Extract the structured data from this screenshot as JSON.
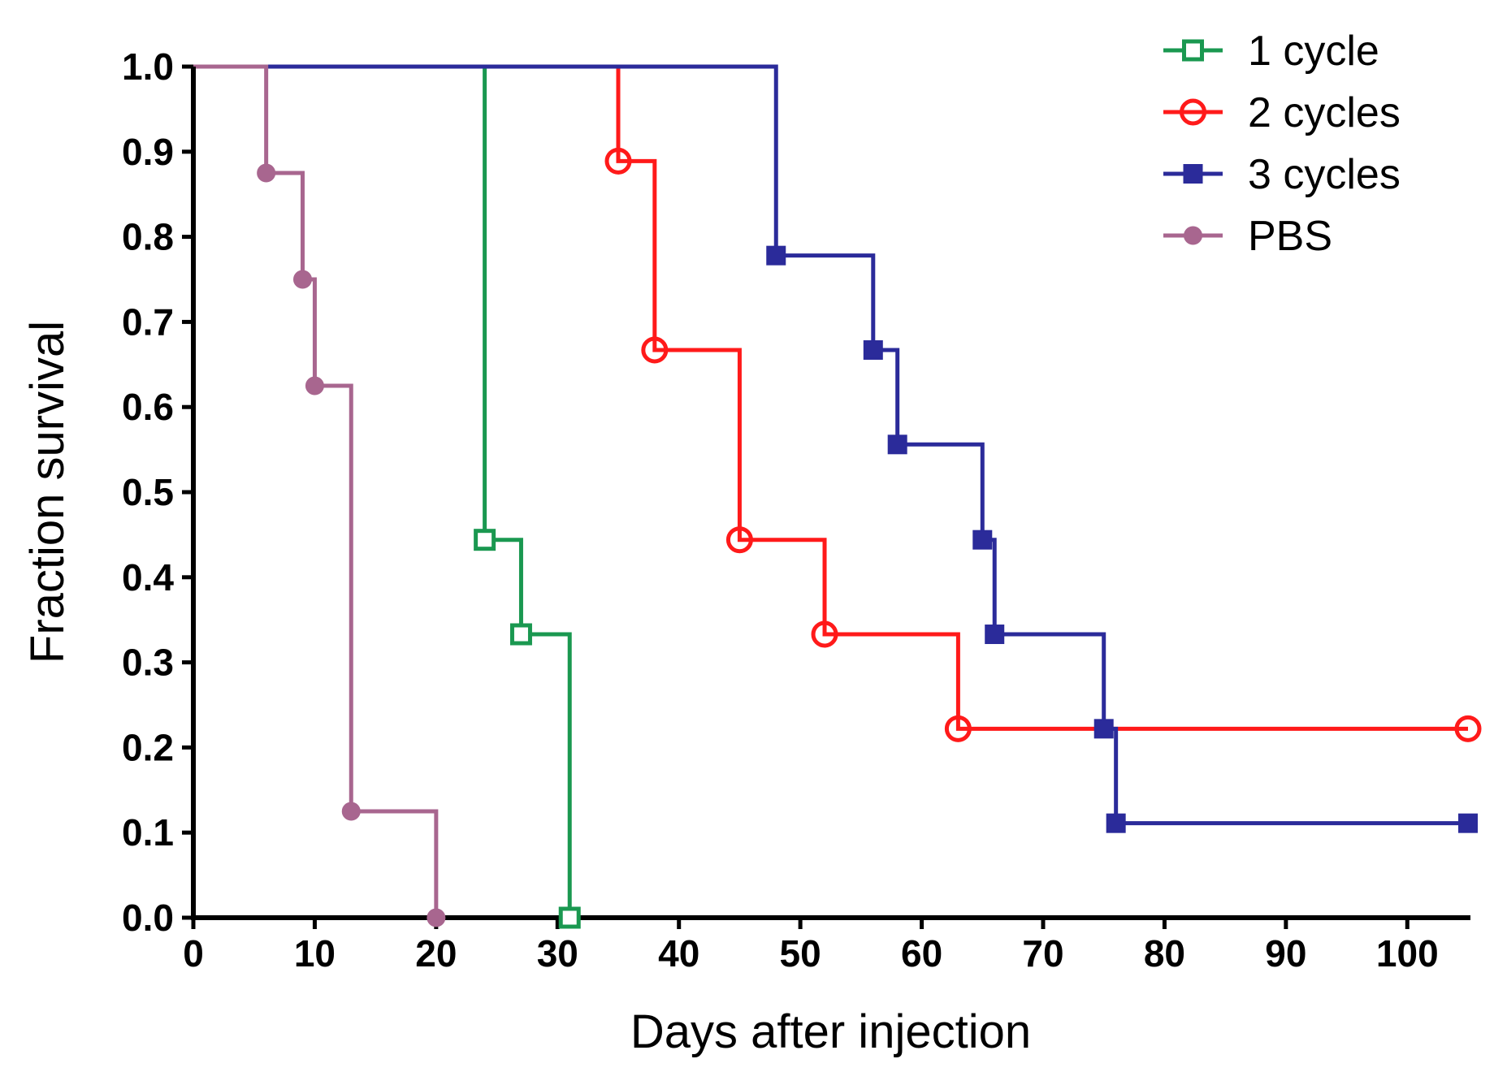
{
  "chart_data": {
    "type": "line",
    "title": "",
    "xlabel": "Days after injection",
    "ylabel": "Fraction survival",
    "xlim": [
      0,
      105
    ],
    "ylim": [
      0,
      1.0
    ],
    "x_ticks": [
      0,
      10,
      20,
      30,
      40,
      50,
      60,
      70,
      80,
      90,
      100
    ],
    "x_tick_labels": [
      "0",
      "10",
      "20",
      "30",
      "40",
      "50",
      "60",
      "70",
      "80",
      "90",
      "100"
    ],
    "y_ticks": [
      0,
      0.1,
      0.2,
      0.3,
      0.4,
      0.5,
      0.6,
      0.7,
      0.8,
      0.9,
      1.0
    ],
    "y_tick_labels": [
      "0.0",
      "0.1",
      "0.2",
      "0.3",
      "0.4",
      "0.5",
      "0.6",
      "0.7",
      "0.8",
      "0.9",
      "1.0"
    ],
    "grid": false,
    "legend_position": "top-right",
    "series": [
      {
        "name": "1 cycle",
        "color": "#1a9850",
        "marker": "open-square",
        "steps": [
          [
            0,
            1.0
          ],
          [
            24,
            0.444
          ],
          [
            27,
            0.333
          ],
          [
            31,
            0.0
          ]
        ],
        "markers": [
          [
            24,
            0.444
          ],
          [
            27,
            0.333
          ],
          [
            31,
            0.0
          ]
        ]
      },
      {
        "name": "2 cycles",
        "color": "#ff1a1a",
        "marker": "open-circle",
        "steps": [
          [
            0,
            1.0
          ],
          [
            35,
            0.889
          ],
          [
            38,
            0.667
          ],
          [
            45,
            0.444
          ],
          [
            52,
            0.333
          ],
          [
            63,
            0.222
          ],
          [
            105,
            0.222
          ]
        ],
        "markers": [
          [
            35,
            0.889
          ],
          [
            38,
            0.667
          ],
          [
            45,
            0.444
          ],
          [
            52,
            0.333
          ],
          [
            63,
            0.222
          ],
          [
            105,
            0.222
          ]
        ]
      },
      {
        "name": "3 cycles",
        "color": "#2b2b9a",
        "marker": "filled-square",
        "steps": [
          [
            0,
            1.0
          ],
          [
            48,
            0.778
          ],
          [
            56,
            0.667
          ],
          [
            58,
            0.556
          ],
          [
            65,
            0.444
          ],
          [
            66,
            0.333
          ],
          [
            75,
            0.222
          ],
          [
            76,
            0.111
          ],
          [
            105,
            0.111
          ]
        ],
        "markers": [
          [
            48,
            0.778
          ],
          [
            56,
            0.667
          ],
          [
            58,
            0.556
          ],
          [
            65,
            0.444
          ],
          [
            66,
            0.333
          ],
          [
            75,
            0.222
          ],
          [
            76,
            0.111
          ],
          [
            105,
            0.111
          ]
        ]
      },
      {
        "name": "PBS",
        "color": "#a8668f",
        "marker": "filled-circle",
        "steps": [
          [
            0,
            1.0
          ],
          [
            6,
            0.875
          ],
          [
            9,
            0.75
          ],
          [
            10,
            0.625
          ],
          [
            13,
            0.125
          ],
          [
            20,
            0.0
          ]
        ],
        "markers": [
          [
            6,
            0.875
          ],
          [
            9,
            0.75
          ],
          [
            10,
            0.625
          ],
          [
            13,
            0.125
          ],
          [
            20,
            0.0
          ]
        ]
      }
    ]
  }
}
